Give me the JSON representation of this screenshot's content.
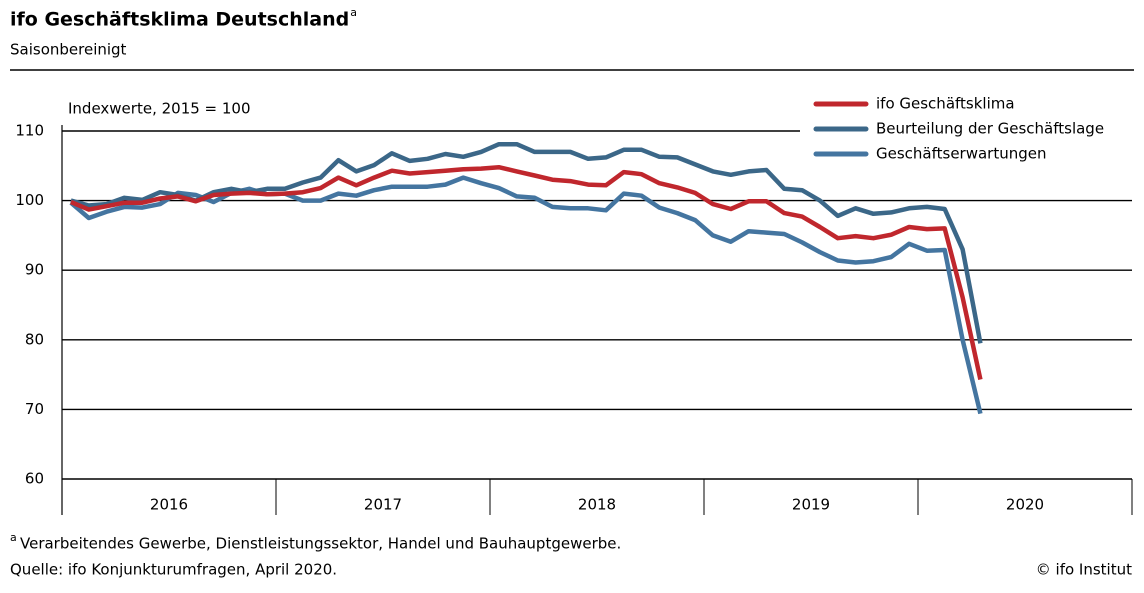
{
  "chart_data": {
    "type": "line",
    "title": "ifo Geschäftsklima Deutschland",
    "title_note": "a",
    "subtitle": "Saisonbereinigt",
    "y_label": "Indexwerte, 2015 = 100",
    "footnote": {
      "marker": "a",
      "text": "Verarbeitendes Gewerbe, Dienstleistungssektor, Handel und Bauhauptgewerbe."
    },
    "source": "Quelle: ifo Konjunkturumfragen, April 2020.",
    "copyright": "© ifo Institut",
    "years": [
      2016,
      2017,
      2018,
      2019,
      2020
    ],
    "categories": [
      null,
      null,
      null,
      null,
      null,
      null,
      null,
      null,
      null,
      null,
      null,
      null,
      null,
      null,
      null,
      null,
      null,
      null,
      null,
      null,
      null,
      null,
      null,
      null,
      null,
      null,
      null,
      null,
      null,
      null,
      null,
      null,
      null,
      null,
      null,
      null,
      null,
      null,
      null,
      null,
      null,
      null,
      null,
      null,
      null,
      null,
      null,
      null,
      null,
      null,
      null,
      null
    ],
    "ylim": [
      60,
      110
    ],
    "yticks": [
      60,
      70,
      80,
      90,
      100,
      110
    ],
    "grid": true,
    "legend": "top-right",
    "series": [
      {
        "name": "ifo Geschäftsklima",
        "color": "#c0272d",
        "values": [
          99.8,
          98.7,
          99.2,
          99.7,
          99.7,
          100.3,
          100.6,
          99.9,
          100.8,
          101.0,
          101.1,
          100.9,
          101.0,
          101.2,
          101.8,
          103.3,
          102.2,
          103.3,
          104.3,
          103.9,
          104.1,
          104.3,
          104.5,
          104.6,
          104.8,
          104.2,
          103.6,
          103.0,
          102.8,
          102.3,
          102.2,
          104.1,
          103.8,
          102.5,
          101.9,
          101.1,
          99.5,
          98.8,
          99.9,
          99.9,
          98.2,
          97.7,
          96.2,
          94.6,
          94.9,
          94.6,
          95.1,
          96.2,
          95.9,
          96.0,
          86.1,
          74.3
        ]
      },
      {
        "name": "Beurteilung der Geschäftslage",
        "color": "#3b6788",
        "values": [
          100.0,
          99.3,
          99.5,
          100.4,
          100.1,
          101.2,
          100.8,
          100.0,
          101.2,
          101.7,
          101.2,
          101.7,
          101.7,
          102.6,
          103.3,
          105.8,
          104.2,
          105.1,
          106.8,
          105.7,
          106.0,
          106.7,
          106.3,
          107.0,
          108.1,
          108.1,
          107.0,
          107.0,
          107.0,
          106.0,
          106.2,
          107.3,
          107.3,
          106.3,
          106.2,
          105.2,
          104.2,
          103.7,
          104.2,
          104.4,
          101.7,
          101.5,
          100.0,
          97.8,
          98.9,
          98.1,
          98.3,
          98.9,
          99.1,
          98.8,
          93.0,
          79.5
        ]
      },
      {
        "name": "Geschäftserwartungen",
        "color": "#4475a0",
        "values": [
          99.7,
          97.5,
          98.4,
          99.1,
          99.0,
          99.5,
          101.1,
          100.8,
          99.8,
          101.1,
          101.7,
          100.9,
          101.0,
          100.0,
          100.0,
          101.0,
          100.7,
          101.5,
          102.0,
          102.0,
          102.0,
          102.3,
          103.3,
          102.5,
          101.8,
          100.6,
          100.4,
          99.1,
          98.9,
          98.9,
          98.6,
          101.0,
          100.7,
          99.0,
          98.2,
          97.2,
          95.0,
          94.1,
          95.6,
          95.4,
          95.2,
          94.0,
          92.6,
          91.4,
          91.1,
          91.3,
          91.9,
          93.8,
          92.8,
          92.9,
          80.0,
          69.4
        ]
      }
    ]
  }
}
